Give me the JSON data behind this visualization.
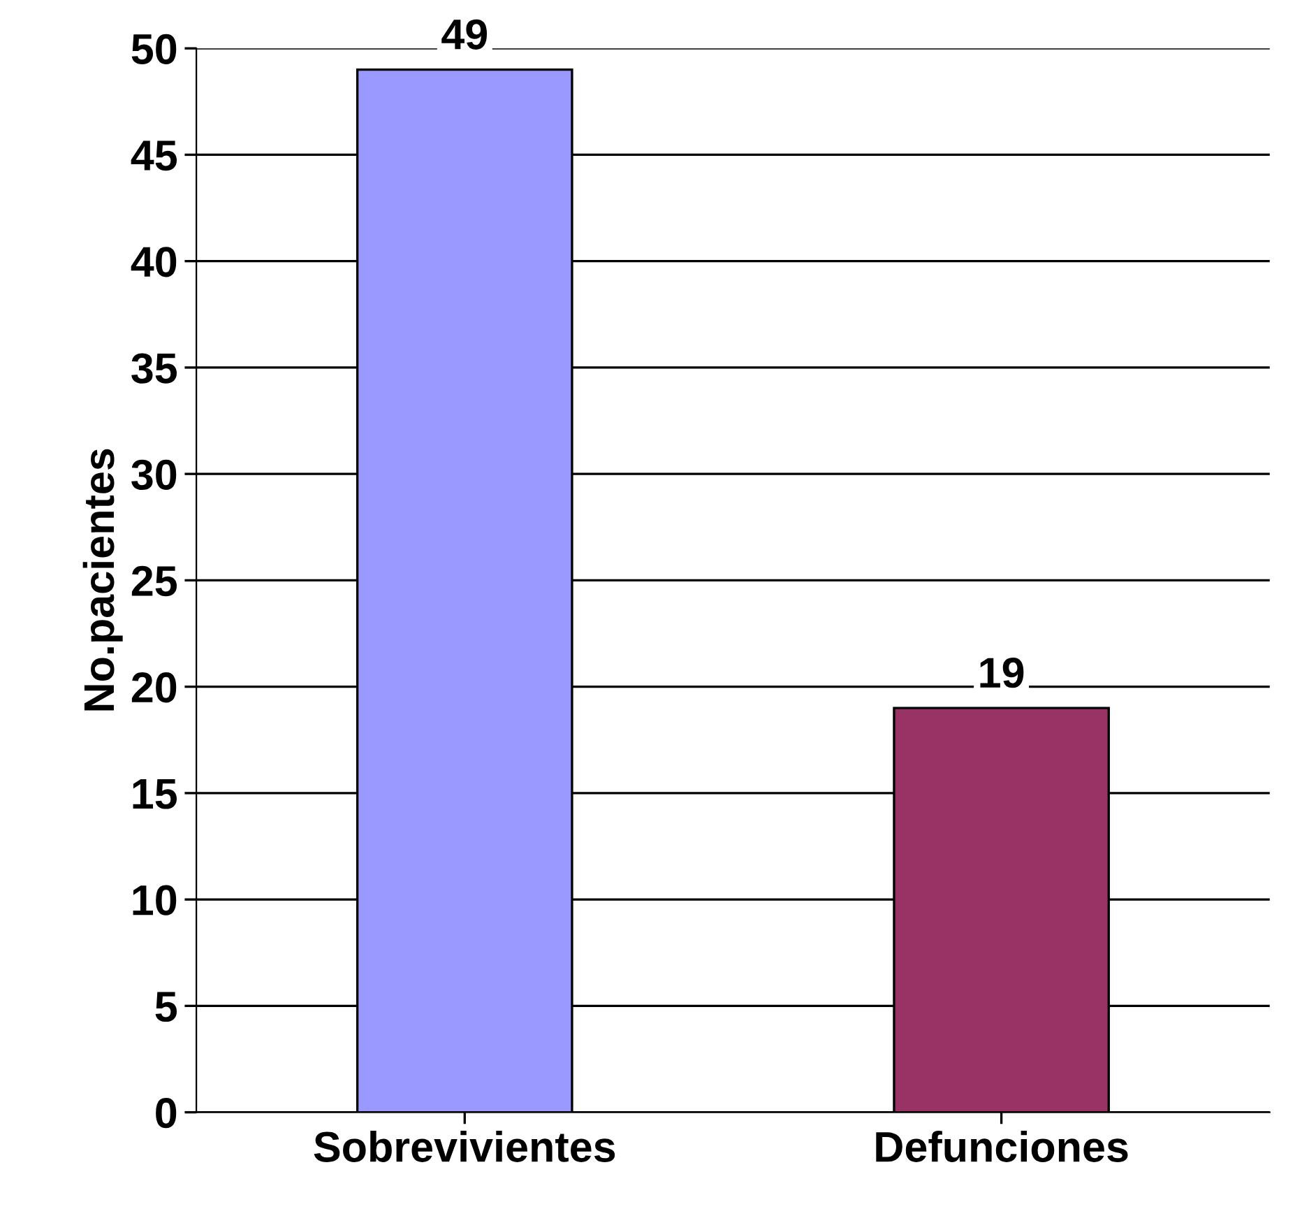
{
  "chart_data": {
    "type": "bar",
    "ylabel": "No.pacientes",
    "categories": [
      "Sobrevivientes",
      "Defunciones"
    ],
    "values": [
      49,
      19
    ],
    "colors": [
      "#9999ff",
      "#993366"
    ],
    "ylim": [
      0,
      50
    ],
    "yticks": [
      0,
      5,
      10,
      15,
      20,
      25,
      30,
      35,
      40,
      45,
      50
    ],
    "grid": "y",
    "data_labels": true,
    "legend": false
  }
}
